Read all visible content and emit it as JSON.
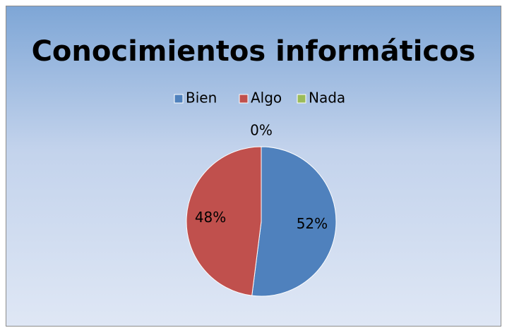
{
  "chart_data": {
    "type": "pie",
    "title": "Conocimientos informáticos",
    "categories": [
      "Bien",
      "Algo",
      "Nada"
    ],
    "values": [
      52,
      48,
      0
    ],
    "value_labels": [
      "52%",
      "48%",
      "0%"
    ],
    "colors": [
      "#4f81bd",
      "#c0504d",
      "#9bbb59"
    ],
    "legend": "top"
  }
}
